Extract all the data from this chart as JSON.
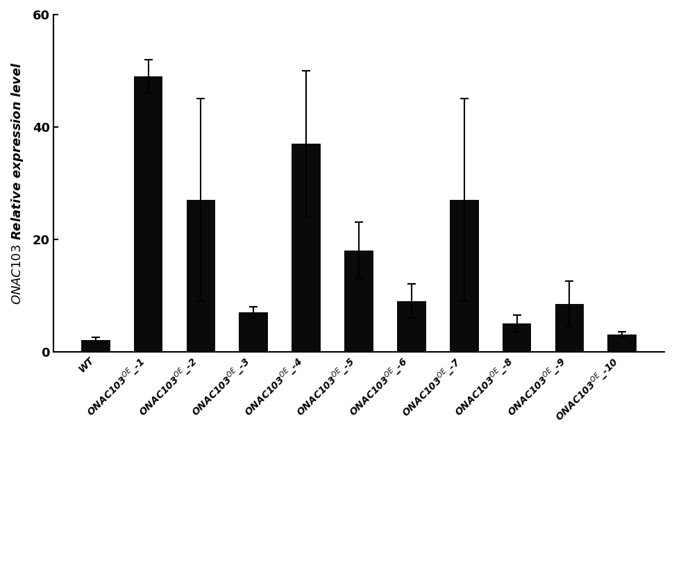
{
  "categories": [
    "WT",
    "ONAC103$^{OE}$_-1",
    "ONAC103$^{OE}$_-2",
    "ONAC103$^{OE}$_-3",
    "ONAC103$^{OE}$_-4",
    "ONAC103$^{OE}$_-5",
    "ONAC103$^{OE}$_-6",
    "ONAC103$^{OE}$_-7",
    "ONAC103$^{OE}$_-8",
    "ONAC103$^{OE}$_-9",
    "ONAC103$^{OE}$_-10"
  ],
  "values": [
    2.0,
    49.0,
    27.0,
    7.0,
    37.0,
    18.0,
    9.0,
    27.0,
    5.0,
    8.5,
    3.0
  ],
  "errors": [
    0.5,
    3.0,
    18.0,
    1.0,
    13.0,
    5.0,
    3.0,
    18.0,
    1.5,
    4.0,
    0.5
  ],
  "bar_color": "#0a0a0a",
  "ylabel": "$ONAC103$ Relative expression level",
  "ylim": [
    0,
    60
  ],
  "yticks": [
    0,
    20,
    40,
    60
  ],
  "ytick_labels": [
    "0",
    "20",
    "40",
    "60"
  ],
  "figsize": [
    9.71,
    8.17
  ],
  "dpi": 100
}
